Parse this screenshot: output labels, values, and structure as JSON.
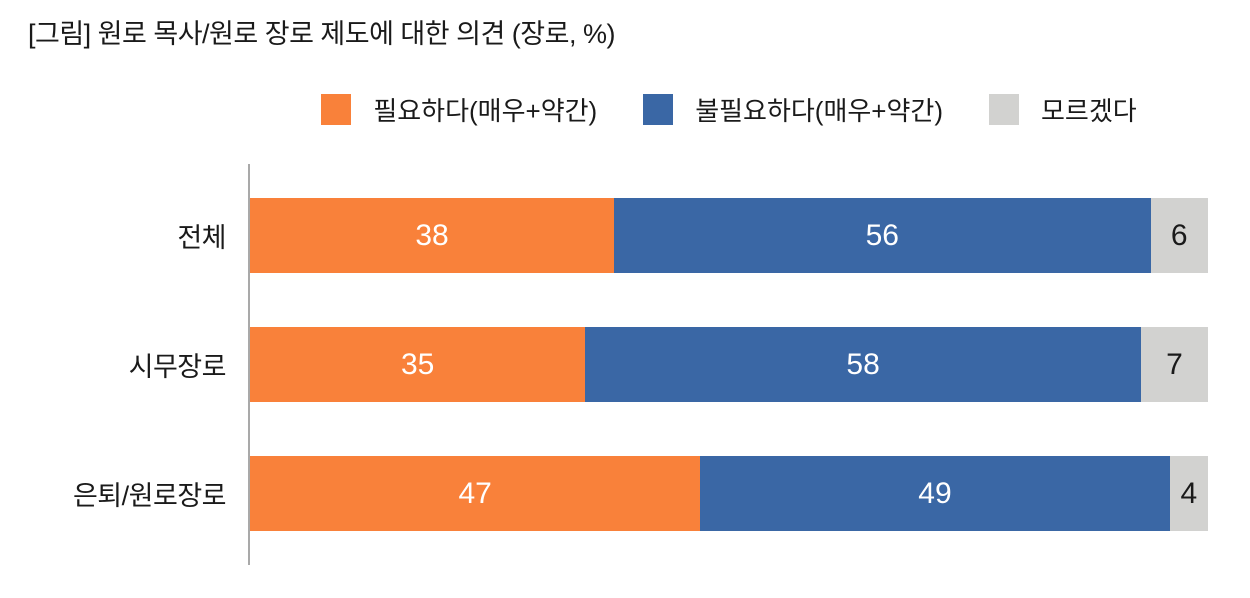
{
  "title": "[그림] 원로 목사/원로 장로 제도에 대한 의견 (장로, %)",
  "colors": {
    "need": "#F9813A",
    "no_need": "#3A67A5",
    "dont_know": "#D2D2D0",
    "axis": "#A9A9A9",
    "text": "#1A1A1A",
    "value_on_dark": "#FFFFFF",
    "value_on_light": "#1A1A1A"
  },
  "chart_data": {
    "type": "bar",
    "orientation": "horizontal",
    "stacked": true,
    "title": "[그림] 원로 목사/원로 장로 제도에 대한 의견 (장로, %)",
    "categories": [
      "전체",
      "시무장로",
      "은퇴/원로장로"
    ],
    "series": [
      {
        "name": "필요하다(매우+약간)",
        "color": "#F9813A",
        "text_color": "#FFFFFF",
        "values": [
          38,
          35,
          47
        ]
      },
      {
        "name": "불필요하다(매우+약간)",
        "color": "#3A67A5",
        "text_color": "#FFFFFF",
        "values": [
          56,
          58,
          49
        ]
      },
      {
        "name": "모르겠다",
        "color": "#D2D2D0",
        "text_color": "#1A1A1A",
        "values": [
          6,
          7,
          4
        ]
      }
    ],
    "xlim": [
      0,
      100
    ],
    "value_labels": true,
    "legend_position": "top",
    "grid": false
  }
}
